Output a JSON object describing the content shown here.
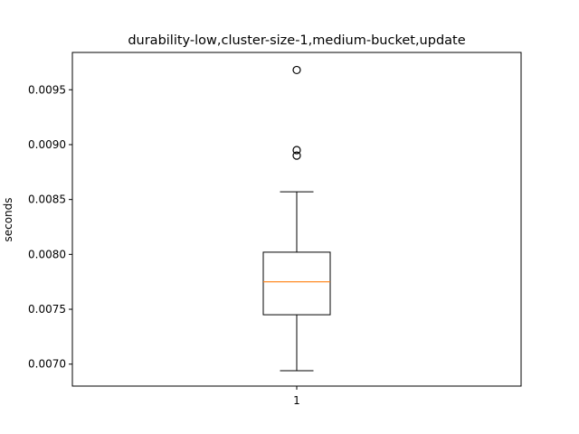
{
  "chart_data": {
    "type": "box",
    "title": "durability-low,cluster-size-1,medium-bucket,update",
    "xlabel": "",
    "ylabel": "seconds",
    "categories": [
      "1"
    ],
    "ylim": [
      0.0068,
      0.00984
    ],
    "yticks": [
      "0.0070",
      "0.0075",
      "0.0080",
      "0.0085",
      "0.0090",
      "0.0095"
    ],
    "boxes": [
      {
        "label": "1",
        "whisker_low": 0.00694,
        "q1": 0.00745,
        "median": 0.00775,
        "q3": 0.00802,
        "whisker_high": 0.00857,
        "outliers": [
          0.0089,
          0.00895,
          0.00968
        ]
      }
    ],
    "grid": false,
    "colors": {
      "box": "#000000",
      "median": "#ff7f0e",
      "outlier": "#000000"
    }
  }
}
